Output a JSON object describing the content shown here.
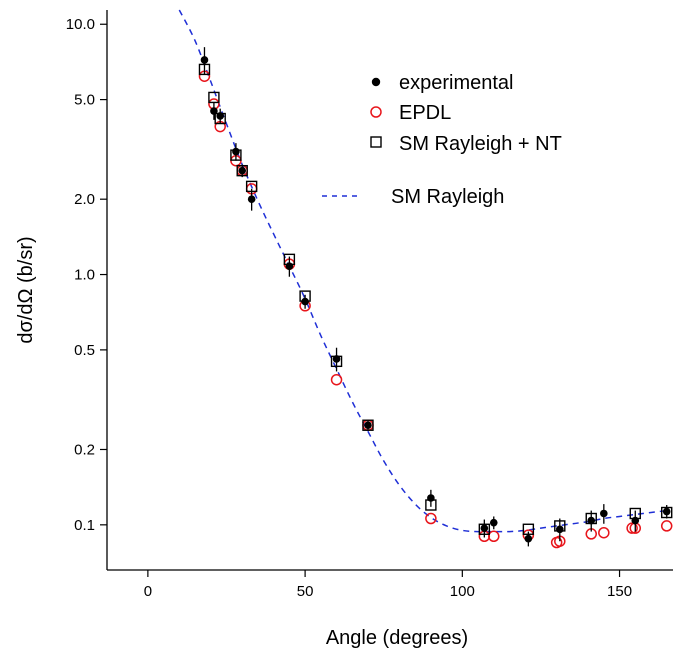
{
  "chart_data": {
    "type": "scatter",
    "xlabel": "Angle (degrees)",
    "ylabel": "dσ/dΩ (b/sr)",
    "xlim": [
      -13,
      167
    ],
    "ylim": [
      0.066,
      11.4
    ],
    "y_scale": "log",
    "x_ticks": [
      0,
      50,
      100,
      150
    ],
    "x_tick_labels": [
      "0",
      "50",
      "100",
      "150"
    ],
    "y_ticks": [
      10,
      5,
      2,
      1,
      0.5,
      0.2,
      0.1
    ],
    "y_tick_labels": [
      "10.0",
      "5.0",
      "2.0",
      "1.0",
      "0.5",
      "0.2",
      "0.1"
    ],
    "grid": false,
    "legend_position": "top-right",
    "colors": {
      "experimental": "#000000",
      "epdl": "#e8151b",
      "sm_nt": "#000000",
      "sm_rayleigh": "#1f2fd6"
    },
    "legend": {
      "experimental": "experimental",
      "epdl": "EPDL",
      "sm_nt": "SM Rayleigh + NT",
      "sm_rayleigh": "SM Rayleigh"
    },
    "series": [
      {
        "name": "experimental",
        "marker": "filled-circle",
        "x": [
          18,
          21,
          23,
          28,
          30,
          33,
          45,
          50,
          60,
          70,
          90,
          107,
          110,
          121,
          131,
          141,
          145,
          155,
          165
        ],
        "y": [
          7.2,
          4.5,
          4.3,
          3.1,
          2.6,
          2.0,
          1.08,
          0.78,
          0.46,
          0.25,
          0.128,
          0.097,
          0.102,
          0.088,
          0.096,
          0.104,
          0.111,
          0.104,
          0.113
        ],
        "err": [
          0.9,
          0.35,
          0.3,
          0.25,
          0.15,
          0.2,
          0.1,
          0.05,
          0.05,
          0.01,
          0.01,
          0.008,
          0.006,
          0.006,
          0.01,
          0.01,
          0.01,
          0.01,
          0.007
        ]
      },
      {
        "name": "EPDL",
        "marker": "open-circle",
        "x": [
          18,
          21,
          23,
          28,
          30,
          33,
          45,
          50,
          60,
          70,
          90,
          107,
          110,
          121,
          130,
          131,
          141,
          145,
          154,
          155,
          165
        ],
        "y": [
          6.2,
          4.8,
          3.9,
          2.85,
          2.6,
          2.2,
          1.1,
          0.75,
          0.38,
          0.25,
          0.106,
          0.09,
          0.09,
          0.091,
          0.085,
          0.086,
          0.092,
          0.093,
          0.097,
          0.097,
          0.099
        ]
      },
      {
        "name": "SM Rayleigh + NT",
        "marker": "open-square",
        "x": [
          18,
          21,
          23,
          28,
          30,
          33,
          45,
          50,
          60,
          70,
          90,
          107,
          121,
          131,
          141,
          155,
          165
        ],
        "y": [
          6.6,
          5.1,
          4.2,
          3.0,
          2.6,
          2.25,
          1.15,
          0.82,
          0.45,
          0.25,
          0.12,
          0.096,
          0.096,
          0.099,
          0.106,
          0.111,
          0.112
        ]
      },
      {
        "name": "SM Rayleigh",
        "line": "dashed",
        "x": [
          10,
          15,
          20,
          25,
          30,
          35,
          40,
          45,
          50,
          55,
          60,
          65,
          70,
          75,
          80,
          85,
          90,
          95,
          100,
          105,
          110,
          115,
          120,
          125,
          130,
          135,
          140,
          145,
          150,
          155,
          160,
          165
        ],
        "y": [
          11.4,
          8.6,
          5.9,
          4.0,
          2.75,
          1.97,
          1.45,
          1.08,
          0.8,
          0.57,
          0.42,
          0.31,
          0.236,
          0.18,
          0.144,
          0.121,
          0.107,
          0.099,
          0.095,
          0.094,
          0.094,
          0.094,
          0.095,
          0.097,
          0.099,
          0.101,
          0.103,
          0.106,
          0.108,
          0.11,
          0.112,
          0.114
        ]
      }
    ]
  }
}
